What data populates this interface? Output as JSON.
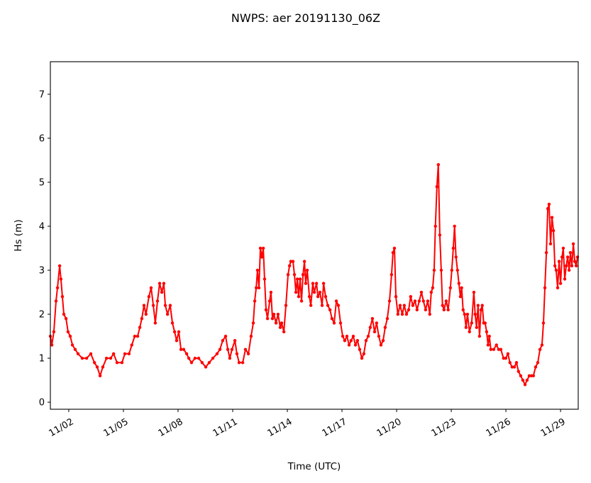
{
  "chart_data": {
    "type": "line",
    "title": "NWPS: aer 20191130_06Z",
    "xlabel": "Time (UTC)",
    "ylabel": "Hs (m)",
    "x_units": "day of November 2019 (UTC, fractional)",
    "xlim": [
      0.99,
      29.97
    ],
    "ylim": [
      -0.16,
      7.74
    ],
    "grid": false,
    "color": "#ff0000",
    "yticks": [
      0,
      1,
      2,
      3,
      4,
      5,
      6,
      7
    ],
    "ytick_labels": [
      "0",
      "1",
      "2",
      "3",
      "4",
      "5",
      "6",
      "7"
    ],
    "xticks": [
      2,
      5,
      8,
      11,
      14,
      17,
      20,
      23,
      26,
      29
    ],
    "xtick_labels": [
      "11/02",
      "11/05",
      "11/08",
      "11/11",
      "11/14",
      "11/17",
      "11/20",
      "11/23",
      "11/26",
      "11/29"
    ],
    "series": [
      {
        "name": "Hs",
        "points": [
          [
            0.99,
            1.5
          ],
          [
            1.07,
            1.3
          ],
          [
            1.18,
            1.6
          ],
          [
            1.3,
            2.3
          ],
          [
            1.38,
            2.6
          ],
          [
            1.5,
            3.1
          ],
          [
            1.57,
            2.8
          ],
          [
            1.65,
            2.4
          ],
          [
            1.73,
            2.0
          ],
          [
            1.85,
            1.9
          ],
          [
            1.96,
            1.6
          ],
          [
            2.08,
            1.5
          ],
          [
            2.2,
            1.3
          ],
          [
            2.35,
            1.2
          ],
          [
            2.51,
            1.1
          ],
          [
            2.74,
            1.0
          ],
          [
            2.98,
            1.0
          ],
          [
            3.21,
            1.1
          ],
          [
            3.41,
            0.9
          ],
          [
            3.56,
            0.8
          ],
          [
            3.72,
            0.6
          ],
          [
            3.87,
            0.8
          ],
          [
            4.07,
            1.0
          ],
          [
            4.3,
            1.0
          ],
          [
            4.46,
            1.1
          ],
          [
            4.65,
            0.9
          ],
          [
            4.92,
            0.9
          ],
          [
            5.08,
            1.1
          ],
          [
            5.31,
            1.1
          ],
          [
            5.46,
            1.3
          ],
          [
            5.62,
            1.5
          ],
          [
            5.78,
            1.5
          ],
          [
            5.9,
            1.7
          ],
          [
            6.01,
            1.9
          ],
          [
            6.13,
            2.2
          ],
          [
            6.24,
            2.0
          ],
          [
            6.4,
            2.4
          ],
          [
            6.52,
            2.6
          ],
          [
            6.64,
            2.2
          ],
          [
            6.75,
            1.8
          ],
          [
            6.87,
            2.3
          ],
          [
            6.99,
            2.7
          ],
          [
            7.11,
            2.5
          ],
          [
            7.22,
            2.7
          ],
          [
            7.3,
            2.2
          ],
          [
            7.42,
            2.0
          ],
          [
            7.57,
            2.2
          ],
          [
            7.69,
            1.8
          ],
          [
            7.81,
            1.6
          ],
          [
            7.92,
            1.4
          ],
          [
            8.04,
            1.6
          ],
          [
            8.16,
            1.2
          ],
          [
            8.31,
            1.2
          ],
          [
            8.47,
            1.1
          ],
          [
            8.59,
            1.0
          ],
          [
            8.74,
            0.9
          ],
          [
            8.93,
            1.0
          ],
          [
            9.13,
            1.0
          ],
          [
            9.32,
            0.9
          ],
          [
            9.52,
            0.8
          ],
          [
            9.71,
            0.9
          ],
          [
            9.91,
            1.0
          ],
          [
            10.14,
            1.1
          ],
          [
            10.3,
            1.2
          ],
          [
            10.45,
            1.4
          ],
          [
            10.61,
            1.5
          ],
          [
            10.73,
            1.2
          ],
          [
            10.84,
            1.0
          ],
          [
            10.96,
            1.2
          ],
          [
            11.12,
            1.4
          ],
          [
            11.23,
            1.1
          ],
          [
            11.35,
            0.9
          ],
          [
            11.55,
            0.9
          ],
          [
            11.7,
            1.2
          ],
          [
            11.86,
            1.1
          ],
          [
            12.01,
            1.5
          ],
          [
            12.13,
            1.8
          ],
          [
            12.21,
            2.3
          ],
          [
            12.29,
            2.6
          ],
          [
            12.36,
            3.0
          ],
          [
            12.44,
            2.6
          ],
          [
            12.52,
            3.5
          ],
          [
            12.6,
            3.3
          ],
          [
            12.68,
            3.5
          ],
          [
            12.75,
            2.8
          ],
          [
            12.83,
            2.1
          ],
          [
            12.91,
            1.9
          ],
          [
            13.03,
            2.3
          ],
          [
            13.1,
            2.5
          ],
          [
            13.18,
            1.9
          ],
          [
            13.26,
            2.0
          ],
          [
            13.38,
            1.8
          ],
          [
            13.49,
            2.0
          ],
          [
            13.61,
            1.7
          ],
          [
            13.69,
            1.8
          ],
          [
            13.81,
            1.6
          ],
          [
            13.92,
            2.2
          ],
          [
            14.04,
            2.9
          ],
          [
            14.12,
            3.1
          ],
          [
            14.19,
            3.2
          ],
          [
            14.31,
            3.2
          ],
          [
            14.39,
            2.9
          ],
          [
            14.47,
            2.5
          ],
          [
            14.55,
            2.8
          ],
          [
            14.62,
            2.4
          ],
          [
            14.7,
            2.8
          ],
          [
            14.78,
            2.3
          ],
          [
            14.86,
            2.9
          ],
          [
            14.94,
            3.2
          ],
          [
            15.01,
            2.7
          ],
          [
            15.09,
            3.0
          ],
          [
            15.21,
            2.4
          ],
          [
            15.29,
            2.2
          ],
          [
            15.4,
            2.7
          ],
          [
            15.48,
            2.5
          ],
          [
            15.6,
            2.7
          ],
          [
            15.68,
            2.4
          ],
          [
            15.79,
            2.5
          ],
          [
            15.91,
            2.2
          ],
          [
            15.99,
            2.7
          ],
          [
            16.1,
            2.4
          ],
          [
            16.22,
            2.2
          ],
          [
            16.34,
            2.1
          ],
          [
            16.45,
            1.9
          ],
          [
            16.57,
            1.8
          ],
          [
            16.69,
            2.3
          ],
          [
            16.8,
            2.2
          ],
          [
            16.92,
            1.8
          ],
          [
            17.04,
            1.5
          ],
          [
            17.15,
            1.4
          ],
          [
            17.27,
            1.5
          ],
          [
            17.39,
            1.3
          ],
          [
            17.5,
            1.4
          ],
          [
            17.62,
            1.5
          ],
          [
            17.74,
            1.3
          ],
          [
            17.85,
            1.4
          ],
          [
            17.97,
            1.2
          ],
          [
            18.09,
            1.0
          ],
          [
            18.2,
            1.1
          ],
          [
            18.32,
            1.4
          ],
          [
            18.44,
            1.5
          ],
          [
            18.55,
            1.7
          ],
          [
            18.67,
            1.9
          ],
          [
            18.79,
            1.6
          ],
          [
            18.9,
            1.8
          ],
          [
            19.02,
            1.5
          ],
          [
            19.14,
            1.3
          ],
          [
            19.26,
            1.4
          ],
          [
            19.37,
            1.7
          ],
          [
            19.49,
            1.9
          ],
          [
            19.61,
            2.3
          ],
          [
            19.72,
            2.9
          ],
          [
            19.8,
            3.4
          ],
          [
            19.88,
            3.5
          ],
          [
            19.96,
            2.4
          ],
          [
            20.07,
            2.0
          ],
          [
            20.19,
            2.2
          ],
          [
            20.31,
            2.0
          ],
          [
            20.42,
            2.2
          ],
          [
            20.54,
            2.0
          ],
          [
            20.66,
            2.1
          ],
          [
            20.77,
            2.4
          ],
          [
            20.89,
            2.2
          ],
          [
            21.01,
            2.3
          ],
          [
            21.12,
            2.1
          ],
          [
            21.24,
            2.3
          ],
          [
            21.36,
            2.5
          ],
          [
            21.47,
            2.3
          ],
          [
            21.59,
            2.1
          ],
          [
            21.71,
            2.3
          ],
          [
            21.82,
            2.0
          ],
          [
            21.9,
            2.5
          ],
          [
            21.98,
            2.6
          ],
          [
            22.06,
            3.0
          ],
          [
            22.13,
            4.0
          ],
          [
            22.21,
            4.9
          ],
          [
            22.29,
            5.4
          ],
          [
            22.37,
            3.8
          ],
          [
            22.45,
            3.0
          ],
          [
            22.52,
            2.2
          ],
          [
            22.6,
            2.1
          ],
          [
            22.72,
            2.3
          ],
          [
            22.83,
            2.1
          ],
          [
            22.95,
            2.6
          ],
          [
            23.03,
            3.0
          ],
          [
            23.11,
            3.5
          ],
          [
            23.18,
            4.0
          ],
          [
            23.26,
            3.3
          ],
          [
            23.34,
            3.0
          ],
          [
            23.42,
            2.7
          ],
          [
            23.5,
            2.4
          ],
          [
            23.57,
            2.6
          ],
          [
            23.65,
            2.1
          ],
          [
            23.73,
            2.0
          ],
          [
            23.81,
            1.7
          ],
          [
            23.89,
            2.0
          ],
          [
            24.0,
            1.6
          ],
          [
            24.12,
            1.8
          ],
          [
            24.24,
            2.5
          ],
          [
            24.31,
            2.0
          ],
          [
            24.39,
            1.7
          ],
          [
            24.47,
            2.2
          ],
          [
            24.55,
            1.5
          ],
          [
            24.63,
            2.1
          ],
          [
            24.7,
            2.2
          ],
          [
            24.78,
            1.8
          ],
          [
            24.86,
            1.8
          ],
          [
            24.94,
            1.6
          ],
          [
            25.02,
            1.3
          ],
          [
            25.09,
            1.5
          ],
          [
            25.17,
            1.2
          ],
          [
            25.33,
            1.2
          ],
          [
            25.48,
            1.3
          ],
          [
            25.6,
            1.2
          ],
          [
            25.72,
            1.2
          ],
          [
            25.87,
            1.0
          ],
          [
            25.99,
            1.0
          ],
          [
            26.11,
            1.1
          ],
          [
            26.22,
            0.9
          ],
          [
            26.34,
            0.8
          ],
          [
            26.46,
            0.8
          ],
          [
            26.58,
            0.9
          ],
          [
            26.69,
            0.7
          ],
          [
            26.81,
            0.6
          ],
          [
            26.93,
            0.5
          ],
          [
            27.05,
            0.4
          ],
          [
            27.16,
            0.5
          ],
          [
            27.28,
            0.6
          ],
          [
            27.4,
            0.6
          ],
          [
            27.51,
            0.6
          ],
          [
            27.63,
            0.8
          ],
          [
            27.75,
            0.9
          ],
          [
            27.87,
            1.2
          ],
          [
            27.98,
            1.3
          ],
          [
            28.06,
            1.8
          ],
          [
            28.14,
            2.6
          ],
          [
            28.22,
            3.4
          ],
          [
            28.3,
            4.4
          ],
          [
            28.37,
            4.5
          ],
          [
            28.45,
            3.6
          ],
          [
            28.53,
            4.2
          ],
          [
            28.61,
            3.9
          ],
          [
            28.69,
            3.1
          ],
          [
            28.76,
            3.0
          ],
          [
            28.84,
            2.6
          ],
          [
            28.92,
            3.2
          ],
          [
            29.0,
            2.7
          ],
          [
            29.08,
            3.3
          ],
          [
            29.15,
            3.5
          ],
          [
            29.23,
            2.8
          ],
          [
            29.31,
            3.1
          ],
          [
            29.39,
            3.3
          ],
          [
            29.47,
            3.0
          ],
          [
            29.54,
            3.4
          ],
          [
            29.62,
            3.1
          ],
          [
            29.7,
            3.6
          ],
          [
            29.78,
            3.2
          ],
          [
            29.86,
            3.1
          ],
          [
            29.93,
            3.3
          ]
        ]
      }
    ]
  }
}
